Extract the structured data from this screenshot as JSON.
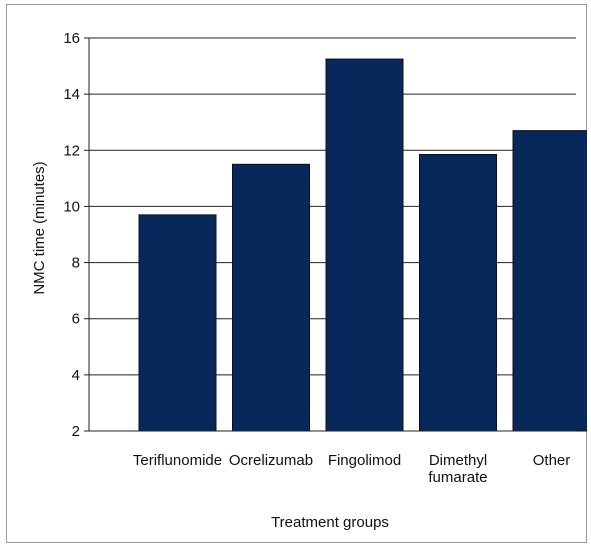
{
  "chart_data": {
    "type": "bar",
    "title": "",
    "xlabel": "Treatment groups",
    "ylabel": "NMC time (minutes)",
    "categories": [
      [
        "Teriflunomide"
      ],
      [
        "Ocrelizumab"
      ],
      [
        "Fingolimod"
      ],
      [
        "Dimethyl",
        "fumarate"
      ],
      [
        "Other"
      ]
    ],
    "values": [
      9.7,
      11.5,
      15.25,
      11.85,
      12.7
    ],
    "ylim": [
      2,
      16
    ],
    "yticks": [
      "2",
      "4",
      "6",
      "8",
      "10",
      "12",
      "14",
      "16"
    ],
    "grid": true,
    "legend": "none",
    "bar_color": "#06285a",
    "bar_edge_color": "#111111"
  }
}
